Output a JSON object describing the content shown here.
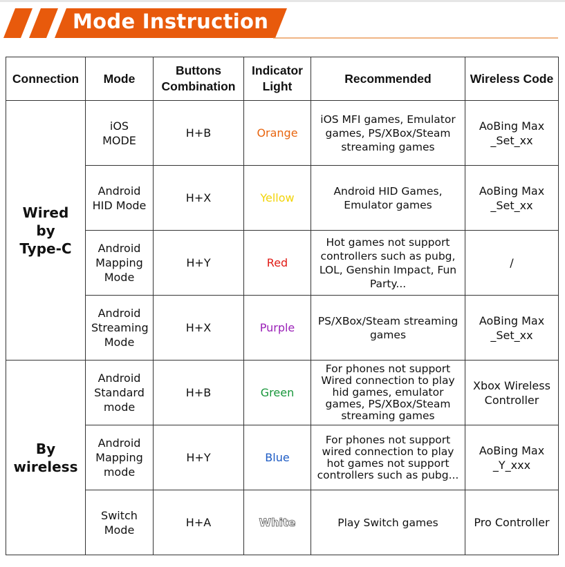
{
  "title": "Mode Instruction",
  "colors": {
    "accent": "#e85a0c",
    "orange": "#e8650f",
    "yellow": "#f2d40a",
    "red": "#e01a14",
    "purple": "#9b22b8",
    "green": "#17963a",
    "blue": "#1d5bc4",
    "white": "#ffffff"
  },
  "headers": [
    "Connection",
    "Mode",
    "Buttons Combination",
    "Indicator Light",
    "Recommended",
    "Wireless Code"
  ],
  "groups": [
    {
      "connection": "Wired by Type-C",
      "rows": [
        {
          "mode": "iOS MODE",
          "buttons": "H+B",
          "light": "Orange",
          "light_color": "orange",
          "recommended": "iOS MFI games, Emulator games, PS/XBox/Steam streaming games",
          "code": "AoBing Max _Set_xx"
        },
        {
          "mode": "Android HID Mode",
          "buttons": "H+X",
          "light": "Yellow",
          "light_color": "yellow",
          "recommended": "Android HID Games, Emulator games",
          "code": "AoBing Max _Set_xx"
        },
        {
          "mode": "Android Mapping Mode",
          "buttons": "H+Y",
          "light": "Red",
          "light_color": "red",
          "recommended": "Hot games not support controllers such as pubg, LOL, Genshin Impact, Fun Party...",
          "code": "/"
        },
        {
          "mode": "Android Streaming Mode",
          "buttons": "H+X",
          "light": "Purple",
          "light_color": "purple",
          "recommended": "PS/XBox/Steam streaming games",
          "code": "AoBing Max _Set_xx"
        }
      ]
    },
    {
      "connection": "By wireless",
      "rows": [
        {
          "mode": "Android Standard mode",
          "buttons": "H+B",
          "light": "Green",
          "light_color": "green",
          "recommended": "For phones not support Wired connection to play hid games, emulator games, PS/XBox/Steam streaming games",
          "code": "Xbox Wireless Controller"
        },
        {
          "mode": "Android Mapping mode",
          "buttons": "H+Y",
          "light": "Blue",
          "light_color": "blue",
          "recommended": "For phones not support wired connection to play hot games not support controllers such as pubg...",
          "code": "AoBing Max _Y_xxx"
        },
        {
          "mode": "Switch Mode",
          "buttons": "H+A",
          "light": "White",
          "light_color": "white",
          "recommended": "Play Switch games",
          "code": "Pro Controller"
        }
      ]
    }
  ]
}
